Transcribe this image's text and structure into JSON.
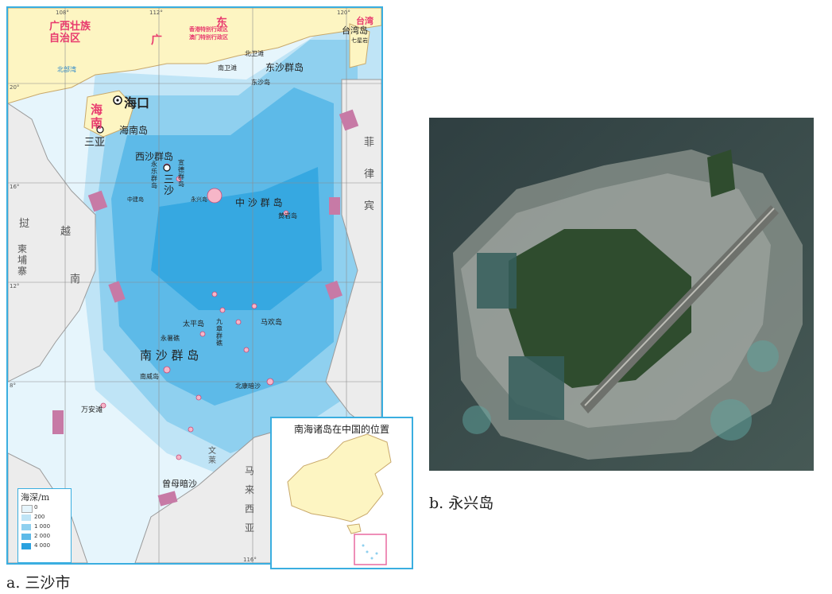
{
  "captions": {
    "a": "a. 三沙市",
    "b": "b. 永兴岛"
  },
  "map": {
    "provinces": {
      "guangxi": "广西壮族\n自治区",
      "guangdong": "广",
      "dong": "东",
      "hainan": "海\n南",
      "taiwan": "台湾"
    },
    "admin_regions": {
      "hk": "香港特别行政区",
      "macau": "澳门特别行政区"
    },
    "cities": {
      "haikou": "海口",
      "sanya": "三亚"
    },
    "islands": {
      "hainan_dao": "海南岛",
      "taiwan_dao": "台湾岛",
      "qimei": "七星岩",
      "beiwei": "北卫滩",
      "nanwei": "南卫滩",
      "dongsha_qundao": "东沙群岛",
      "dongsha_dao": "东沙岛",
      "xisha_qundao": "西沙群岛",
      "yongle": "永\n乐\n群\n岛",
      "xuande": "宣\n德\n群\n岛",
      "sha": "三\n沙",
      "zhongjian": "中建岛",
      "yongxing": "永兴岛",
      "zhongsha": "中 沙 群 岛",
      "huangyan": "黄岩岛",
      "taiping": "太平岛",
      "yongshu": "永暑礁",
      "mahuan": "马欢岛",
      "nansha": "南 沙 群 岛",
      "nanwei2": "南威岛",
      "wanan": "万安滩",
      "zengmu": "曾母暗沙",
      "jiuzhang": "九\n章\n群\n礁",
      "beikang": "北康暗沙"
    },
    "countries": {
      "yue": "越",
      "nan": "南",
      "lao": "挝",
      "jianpuzhai": "柬\n埔\n寨",
      "philippines": "菲\n律\n宾",
      "wenlai": "文\n莱",
      "malaixiya": "马\n来\n西\n亚"
    },
    "water": {
      "beibu": "北部湾"
    },
    "inset": {
      "title": "南海诸岛在中国的位置"
    },
    "legend": {
      "title": "海深/m",
      "levels": [
        "0",
        "200",
        "1 000",
        "2 000",
        "4 000"
      ],
      "colors": [
        "#e6f5fc",
        "#bfe4f6",
        "#8fd0ef",
        "#5dbae8",
        "#2aa1df"
      ]
    },
    "lon_labels": [
      "108°",
      "112°",
      "116°",
      "120°"
    ],
    "lat_labels": [
      "20°",
      "16°",
      "12°",
      "8°"
    ]
  }
}
